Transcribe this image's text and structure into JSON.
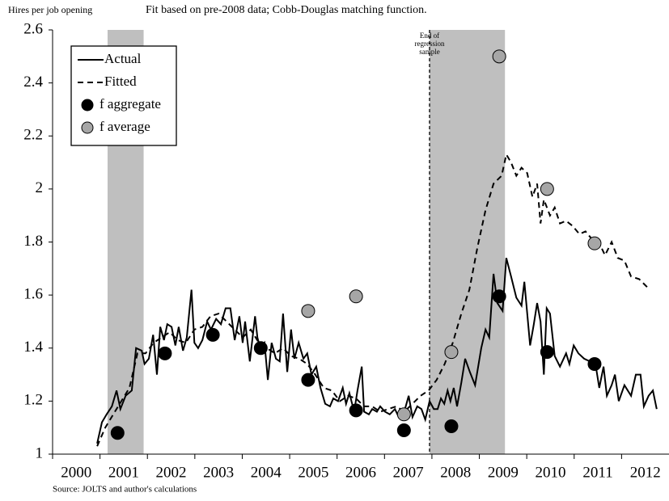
{
  "chart_data": {
    "type": "line",
    "ylabel": "Hires per job opening",
    "subtitle": "Fit based on pre-2008 data; Cobb-Douglas matching function.",
    "source": "Source: JOLTS and author's calculations",
    "annotation": {
      "x": 2007.95,
      "lines": [
        "End of",
        "regression",
        "sample"
      ]
    },
    "shaded": [
      [
        2001.16,
        2001.92
      ],
      [
        2007.95,
        2009.54
      ]
    ],
    "shade_color": "#bfbfbf",
    "xlim": [
      2000,
      2013
    ],
    "xticks": [
      2000,
      2001,
      2002,
      2003,
      2004,
      2005,
      2006,
      2007,
      2008,
      2009,
      2010,
      2011,
      2012
    ],
    "ylim": [
      1,
      2.6
    ],
    "yticks": [
      1,
      1.2,
      1.4,
      1.6,
      1.8,
      2,
      2.2,
      2.4,
      2.6
    ],
    "legend": "upper left",
    "series": [
      {
        "name": "Actual",
        "style": "solid",
        "color": "#000000",
        "x": [
          2000.94,
          2001.04,
          2001.14,
          2001.25,
          2001.35,
          2001.43,
          2001.54,
          2001.67,
          2001.76,
          2001.88,
          2001.94,
          2002.03,
          2002.12,
          2002.2,
          2002.27,
          2002.35,
          2002.42,
          2002.51,
          2002.59,
          2002.66,
          2002.75,
          2002.83,
          2002.93,
          2002.99,
          2003.07,
          2003.16,
          2003.26,
          2003.34,
          2003.45,
          2003.55,
          2003.65,
          2003.75,
          2003.84,
          2003.94,
          2004.01,
          2004.06,
          2004.16,
          2004.27,
          2004.32,
          2004.38,
          2004.47,
          2004.54,
          2004.62,
          2004.71,
          2004.79,
          2004.86,
          2004.95,
          2005.03,
          2005.1,
          2005.19,
          2005.29,
          2005.37,
          2005.46,
          2005.56,
          2005.65,
          2005.75,
          2005.85,
          2005.92,
          2006.02,
          2006.12,
          2006.19,
          2006.26,
          2006.36,
          2006.43,
          2006.52,
          2006.57,
          2006.67,
          2006.74,
          2006.84,
          2006.91,
          2007.01,
          2007.11,
          2007.22,
          2007.3,
          2007.4,
          2007.51,
          2007.59,
          2007.69,
          2007.78,
          2007.86,
          2007.95,
          2008.04,
          2008.12,
          2008.19,
          2008.26,
          2008.33,
          2008.39,
          2008.46,
          2008.53,
          2008.62,
          2008.7,
          2008.8,
          2008.91,
          2009.04,
          2009.13,
          2009.21,
          2009.3,
          2009.38,
          2009.49,
          2009.57,
          2009.67,
          2009.78,
          2009.89,
          2009.95,
          2010.07,
          2010.15,
          2010.22,
          2010.29,
          2010.36,
          2010.42,
          2010.49,
          2010.59,
          2010.7,
          2010.83,
          2010.9,
          2010.99,
          2011.09,
          2011.21,
          2011.33,
          2011.45,
          2011.53,
          2011.62,
          2011.69,
          2011.79,
          2011.86,
          2011.94,
          2012.06,
          2012.2,
          2012.3,
          2012.4,
          2012.47,
          2012.57,
          2012.66,
          2012.74
        ],
        "values": [
          1.04,
          1.12,
          1.15,
          1.18,
          1.24,
          1.17,
          1.22,
          1.24,
          1.4,
          1.39,
          1.34,
          1.36,
          1.45,
          1.3,
          1.48,
          1.43,
          1.49,
          1.48,
          1.41,
          1.48,
          1.39,
          1.44,
          1.62,
          1.42,
          1.4,
          1.43,
          1.5,
          1.47,
          1.51,
          1.49,
          1.55,
          1.55,
          1.43,
          1.52,
          1.42,
          1.5,
          1.35,
          1.52,
          1.44,
          1.4,
          1.42,
          1.28,
          1.42,
          1.36,
          1.35,
          1.53,
          1.31,
          1.47,
          1.36,
          1.42,
          1.36,
          1.38,
          1.3,
          1.33,
          1.25,
          1.19,
          1.18,
          1.21,
          1.2,
          1.25,
          1.19,
          1.23,
          1.16,
          1.24,
          1.33,
          1.16,
          1.15,
          1.17,
          1.16,
          1.18,
          1.16,
          1.15,
          1.17,
          1.14,
          1.15,
          1.22,
          1.14,
          1.18,
          1.17,
          1.13,
          1.2,
          1.17,
          1.17,
          1.21,
          1.19,
          1.24,
          1.2,
          1.25,
          1.18,
          1.27,
          1.36,
          1.31,
          1.26,
          1.4,
          1.47,
          1.44,
          1.68,
          1.57,
          1.54,
          1.74,
          1.67,
          1.59,
          1.56,
          1.65,
          1.41,
          1.49,
          1.57,
          1.5,
          1.3,
          1.55,
          1.53,
          1.37,
          1.33,
          1.38,
          1.34,
          1.41,
          1.38,
          1.36,
          1.35,
          1.34,
          1.25,
          1.33,
          1.22,
          1.26,
          1.3,
          1.2,
          1.26,
          1.22,
          1.3,
          1.3,
          1.18,
          1.22,
          1.24,
          1.17
        ]
      },
      {
        "name": "Fitted",
        "style": "dashed",
        "color": "#000000",
        "x": [
          2000.94,
          2001.11,
          2001.28,
          2001.45,
          2001.62,
          2001.79,
          2001.96,
          2002.13,
          2002.3,
          2002.47,
          2002.64,
          2002.81,
          2002.99,
          2003.16,
          2003.33,
          2003.5,
          2003.67,
          2003.84,
          2004.01,
          2004.18,
          2004.35,
          2004.52,
          2004.69,
          2004.86,
          2005.03,
          2005.2,
          2005.37,
          2005.54,
          2005.72,
          2005.89,
          2006.06,
          2006.23,
          2006.4,
          2006.57,
          2006.74,
          2006.91,
          2007.08,
          2007.25,
          2007.42,
          2007.59,
          2007.76,
          2007.93,
          2008.1,
          2008.27,
          2008.44,
          2008.62,
          2008.79,
          2008.96,
          2009.13,
          2009.3,
          2009.47,
          2009.57,
          2009.67,
          2009.78,
          2009.89,
          2010.01,
          2010.12,
          2010.22,
          2010.29,
          2010.36,
          2010.49,
          2010.59,
          2010.7,
          2010.83,
          2010.97,
          2011.11,
          2011.24,
          2011.38,
          2011.52,
          2011.65,
          2011.79,
          2011.92,
          2012.06,
          2012.2,
          2012.37,
          2012.54
        ],
        "values": [
          1.03,
          1.1,
          1.15,
          1.2,
          1.25,
          1.38,
          1.38,
          1.42,
          1.44,
          1.46,
          1.43,
          1.42,
          1.47,
          1.48,
          1.52,
          1.53,
          1.5,
          1.47,
          1.44,
          1.47,
          1.42,
          1.4,
          1.38,
          1.4,
          1.37,
          1.36,
          1.34,
          1.3,
          1.25,
          1.24,
          1.2,
          1.22,
          1.21,
          1.18,
          1.18,
          1.16,
          1.17,
          1.18,
          1.16,
          1.19,
          1.22,
          1.24,
          1.28,
          1.34,
          1.42,
          1.53,
          1.62,
          1.78,
          1.92,
          2.02,
          2.05,
          2.13,
          2.1,
          2.05,
          2.08,
          2.06,
          1.97,
          2.02,
          1.87,
          1.96,
          1.9,
          1.93,
          1.87,
          1.88,
          1.86,
          1.83,
          1.84,
          1.81,
          1.8,
          1.75,
          1.8,
          1.74,
          1.73,
          1.67,
          1.66,
          1.63
        ]
      },
      {
        "name": "f aggregate",
        "style": "scatter",
        "color": "#000000",
        "x": [
          2001.37,
          2002.37,
          2003.38,
          2004.39,
          2005.39,
          2006.4,
          2007.41,
          2008.41,
          2009.42,
          2010.43,
          2011.43
        ],
        "values": [
          1.08,
          1.38,
          1.45,
          1.4,
          1.28,
          1.165,
          1.09,
          1.105,
          1.595,
          1.385,
          1.34
        ]
      },
      {
        "name": "f average",
        "style": "scatter",
        "color": "#a6a6a6",
        "x": [
          2005.39,
          2006.4,
          2007.41,
          2008.41,
          2009.42,
          2010.43,
          2011.43
        ],
        "values": [
          1.54,
          1.595,
          1.15,
          1.385,
          2.5,
          2,
          1.795
        ]
      }
    ]
  }
}
